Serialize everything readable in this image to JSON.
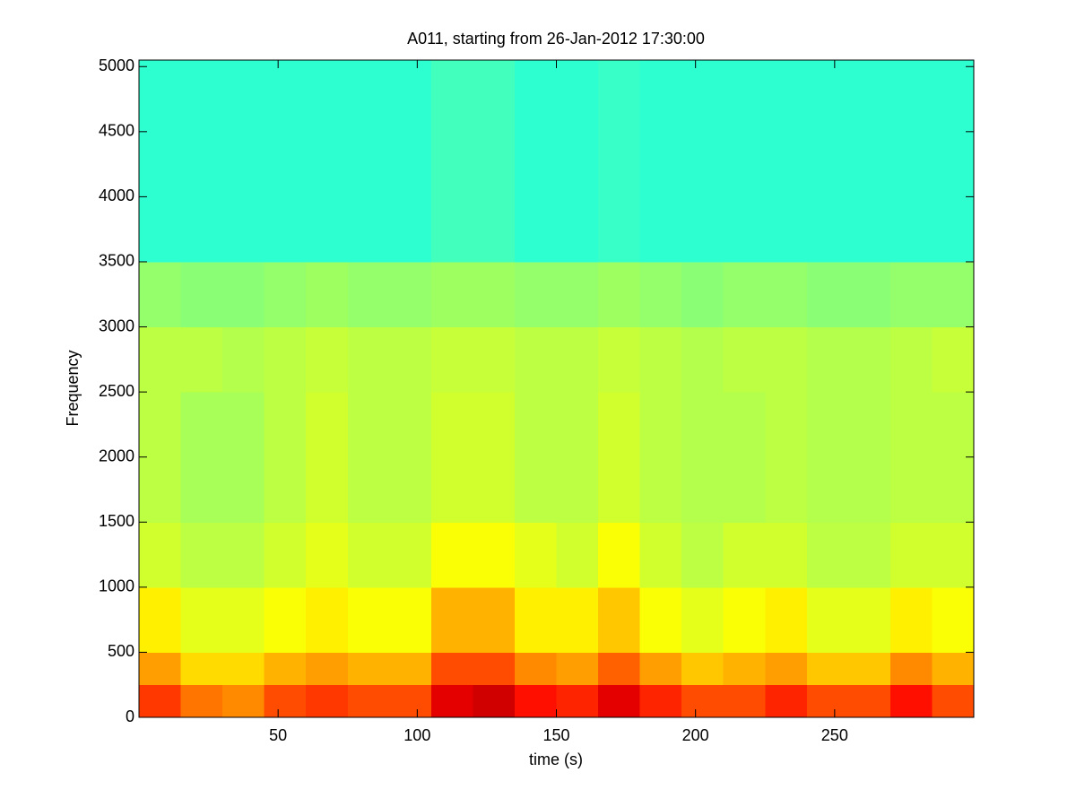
{
  "chart_data": {
    "type": "heatmap",
    "title": "A011, starting from 26-Jan-2012 17:30:00",
    "x_label": "time (s)",
    "y_label": "Frequency",
    "colormap": "jet",
    "clim": [
      0,
      1
    ],
    "x_edges": [
      0,
      15,
      30,
      45,
      60,
      75,
      90,
      105,
      120,
      135,
      150,
      165,
      180,
      195,
      210,
      225,
      240,
      255,
      270,
      285,
      300
    ],
    "y_edges": [
      0,
      250,
      500,
      1000,
      1500,
      2500,
      3000,
      3500,
      5050
    ],
    "z": [
      [
        0.82,
        0.76,
        0.74,
        0.8,
        0.82,
        0.8,
        0.8,
        0.9,
        0.92,
        0.86,
        0.84,
        0.9,
        0.84,
        0.8,
        0.8,
        0.84,
        0.8,
        0.8,
        0.86,
        0.8
      ],
      [
        0.72,
        0.66,
        0.66,
        0.7,
        0.72,
        0.7,
        0.7,
        0.8,
        0.8,
        0.74,
        0.72,
        0.78,
        0.72,
        0.68,
        0.7,
        0.72,
        0.68,
        0.68,
        0.74,
        0.7
      ],
      [
        0.64,
        0.6,
        0.6,
        0.62,
        0.64,
        0.62,
        0.62,
        0.7,
        0.7,
        0.64,
        0.64,
        0.68,
        0.62,
        0.6,
        0.62,
        0.64,
        0.6,
        0.6,
        0.64,
        0.62
      ],
      [
        0.58,
        0.56,
        0.56,
        0.58,
        0.6,
        0.58,
        0.58,
        0.62,
        0.62,
        0.6,
        0.58,
        0.62,
        0.58,
        0.56,
        0.58,
        0.58,
        0.56,
        0.56,
        0.58,
        0.58
      ],
      [
        0.56,
        0.54,
        0.54,
        0.56,
        0.58,
        0.56,
        0.56,
        0.58,
        0.58,
        0.56,
        0.56,
        0.58,
        0.56,
        0.55,
        0.55,
        0.56,
        0.55,
        0.55,
        0.56,
        0.56
      ],
      [
        0.56,
        0.56,
        0.55,
        0.56,
        0.57,
        0.56,
        0.56,
        0.57,
        0.57,
        0.56,
        0.56,
        0.57,
        0.56,
        0.55,
        0.56,
        0.56,
        0.55,
        0.55,
        0.56,
        0.57
      ],
      [
        0.52,
        0.51,
        0.51,
        0.52,
        0.53,
        0.52,
        0.52,
        0.53,
        0.53,
        0.52,
        0.52,
        0.53,
        0.52,
        0.51,
        0.52,
        0.52,
        0.51,
        0.51,
        0.52,
        0.52
      ],
      [
        0.42,
        0.42,
        0.42,
        0.42,
        0.42,
        0.42,
        0.42,
        0.44,
        0.44,
        0.42,
        0.42,
        0.43,
        0.42,
        0.42,
        0.42,
        0.42,
        0.42,
        0.42,
        0.42,
        0.42
      ]
    ],
    "xlim": [
      0,
      300
    ],
    "ylim": [
      0,
      5050
    ],
    "xticks": [
      50,
      100,
      150,
      200,
      250
    ],
    "yticks": [
      0,
      500,
      1000,
      1500,
      2000,
      2500,
      3000,
      3500,
      4000,
      4500,
      5000
    ]
  }
}
